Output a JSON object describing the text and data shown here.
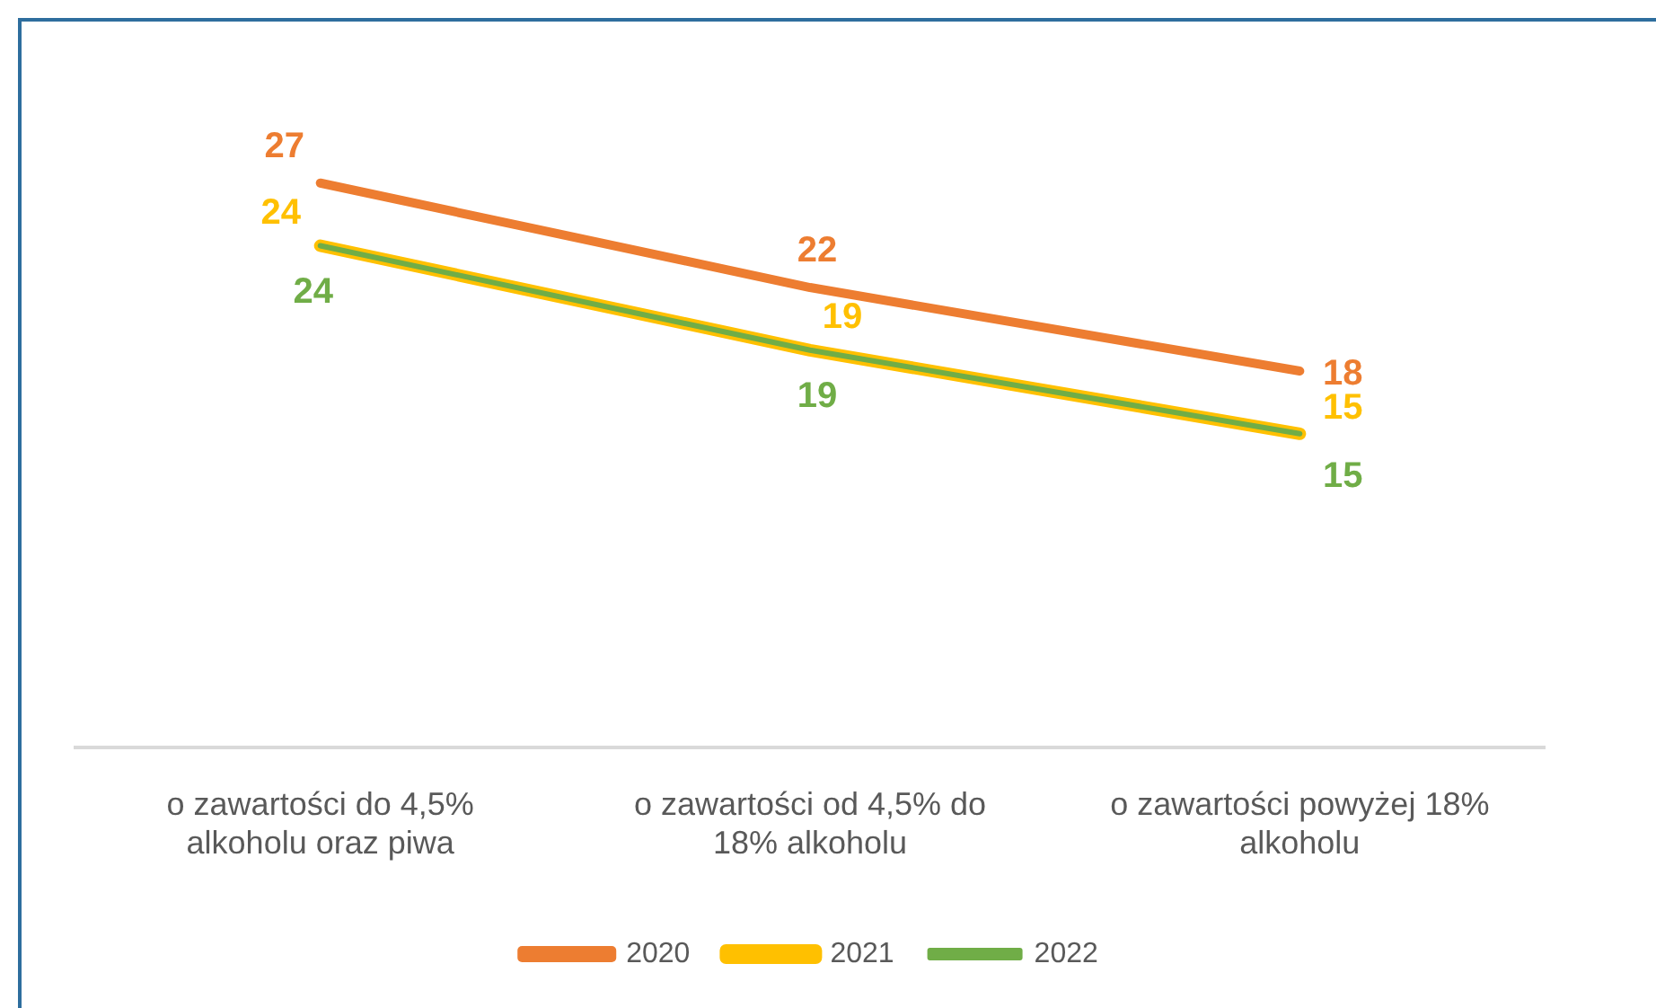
{
  "chart_data": {
    "type": "line",
    "categories": [
      "o zawartości do 4,5% alkoholu oraz piwa",
      "o zawartości od 4,5% do 18% alkoholu",
      "o zawartości powyżej 18% alkoholu"
    ],
    "series": [
      {
        "name": "2020",
        "color": "#ed7d31",
        "values": [
          27,
          22,
          18
        ]
      },
      {
        "name": "2021",
        "color": "#ffc000",
        "values": [
          24,
          19,
          15
        ]
      },
      {
        "name": "2022",
        "color": "#70ad47",
        "values": [
          24,
          19,
          15
        ]
      }
    ],
    "data_labels": true,
    "legend": "bottom",
    "grid": false,
    "marker": "none",
    "line_style": "solid"
  }
}
